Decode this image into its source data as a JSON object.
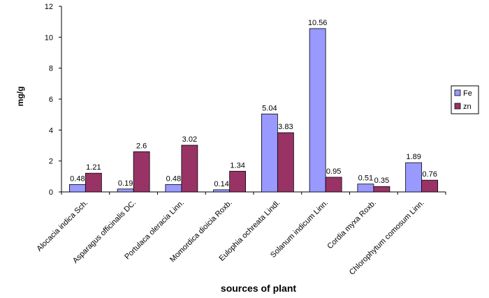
{
  "chart_data": {
    "type": "bar",
    "title": "",
    "xlabel": "sources of plant",
    "ylabel": "mg/g",
    "ylim": [
      0,
      12
    ],
    "yticks": [
      0,
      2,
      4,
      6,
      8,
      10,
      12
    ],
    "grid": false,
    "legend_position": "right",
    "categories": [
      "Alocacia indica Sch.",
      "Asparagus officinalis DC.",
      "Portulaca oleracia Linn.",
      "Momordica dioicia Roxb.",
      "Eulophia ochreata Lindl.",
      "Solanum indicum Linn.",
      "Cordia myxa Roxb.",
      "Chlorophytum comosum Linn."
    ],
    "series": [
      {
        "name": "Fe",
        "color": "#9999ff",
        "values": [
          0.48,
          0.19,
          0.48,
          0.14,
          5.04,
          10.56,
          0.51,
          1.89
        ]
      },
      {
        "name": "zn",
        "color": "#993366",
        "values": [
          1.21,
          2.6,
          3.02,
          1.34,
          3.83,
          0.95,
          0.35,
          0.76
        ]
      }
    ]
  }
}
